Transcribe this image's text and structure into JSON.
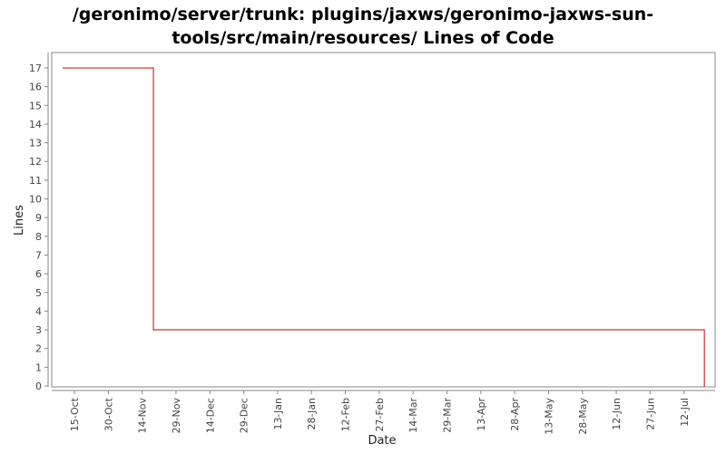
{
  "chart_data": {
    "type": "line",
    "title_line1": "/geronimo/server/trunk: plugins/jaxws/geronimo-jaxws-sun-",
    "title_line2": "tools/src/main/resources/ Lines of Code",
    "xlabel": "Date",
    "ylabel": "Lines",
    "ylim": [
      0,
      17
    ],
    "y_ticks": [
      0,
      1,
      2,
      3,
      4,
      5,
      6,
      7,
      8,
      9,
      10,
      11,
      12,
      13,
      14,
      15,
      16,
      17
    ],
    "x_ticks": [
      "15-Oct",
      "30-Oct",
      "14-Nov",
      "29-Nov",
      "14-Dec",
      "29-Dec",
      "13-Jan",
      "28-Jan",
      "12-Feb",
      "27-Feb",
      "14-Mar",
      "29-Mar",
      "13-Apr",
      "28-Apr",
      "13-May",
      "28-May",
      "12-Jun",
      "27-Jun",
      "12-Jul"
    ],
    "step": "after",
    "grid": false,
    "colors": {
      "line": "#cc0000",
      "axis": "#888888",
      "background": "#ffffff"
    },
    "series": [
      {
        "x": [
          "10-Oct",
          "19-Nov",
          "21-Jul"
        ],
        "values": [
          17,
          3,
          0
        ]
      }
    ]
  }
}
